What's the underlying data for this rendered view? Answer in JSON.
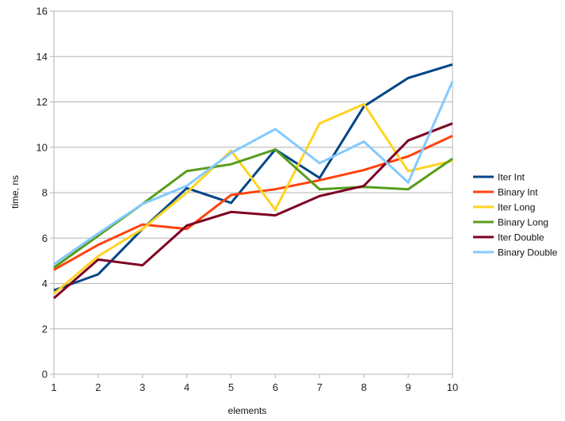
{
  "chart_data": {
    "type": "line",
    "title": "",
    "xlabel": "elements",
    "ylabel": "time, ns",
    "x": [
      1,
      2,
      3,
      4,
      5,
      6,
      7,
      8,
      9,
      10
    ],
    "xlim": [
      1,
      10
    ],
    "ylim": [
      0,
      16
    ],
    "y_ticks": [
      0,
      2,
      4,
      6,
      8,
      10,
      12,
      14,
      16
    ],
    "x_ticks": [
      1,
      2,
      3,
      4,
      5,
      6,
      7,
      8,
      9,
      10
    ],
    "grid": "horizontal",
    "legend_position": "right",
    "series": [
      {
        "name": "Iter Int",
        "color": "#004586",
        "values": [
          3.7,
          4.4,
          6.4,
          8.2,
          7.55,
          9.9,
          8.65,
          11.8,
          13.05,
          13.65
        ]
      },
      {
        "name": "Binary Int",
        "color": "#ff420e",
        "values": [
          4.6,
          5.7,
          6.6,
          6.4,
          7.9,
          8.15,
          8.55,
          9.0,
          9.6,
          10.5
        ]
      },
      {
        "name": "Iter Long",
        "color": "#ffd320",
        "values": [
          3.55,
          5.2,
          6.4,
          8.0,
          9.85,
          7.25,
          11.05,
          11.9,
          8.95,
          9.4
        ]
      },
      {
        "name": "Binary Long",
        "color": "#579d1c",
        "values": [
          4.7,
          6.1,
          7.5,
          8.95,
          9.25,
          9.9,
          8.15,
          8.25,
          8.15,
          9.5
        ]
      },
      {
        "name": "Iter Double",
        "color": "#7e0021",
        "values": [
          3.35,
          5.05,
          4.8,
          6.55,
          7.15,
          7.0,
          7.85,
          8.3,
          10.3,
          11.05
        ]
      },
      {
        "name": "Binary Double",
        "color": "#83caff",
        "values": [
          4.85,
          6.2,
          7.5,
          8.3,
          9.75,
          10.8,
          9.3,
          10.25,
          8.45,
          12.9
        ]
      }
    ]
  }
}
